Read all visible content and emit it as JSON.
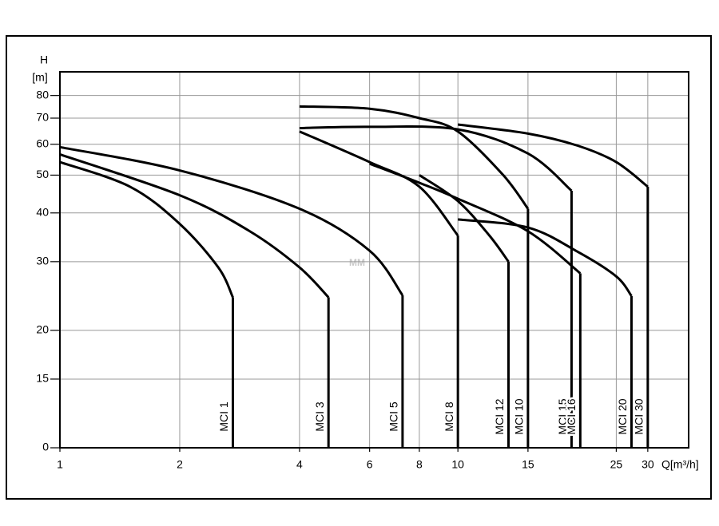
{
  "chart_data": {
    "type": "line",
    "x_label": "Q[m³/h]",
    "y_label": "H",
    "y_unit": "[m]",
    "y_bottom_label": "0",
    "watermark": "MM",
    "xscale": "log",
    "yscale": "log",
    "xlim": [
      1,
      38
    ],
    "ylim": [
      10,
      92
    ],
    "xticks": [
      1,
      2,
      4,
      6,
      8,
      10,
      15,
      25,
      30
    ],
    "yticks": [
      15,
      20,
      30,
      40,
      50,
      60,
      70,
      80
    ],
    "grid": true,
    "series": [
      {
        "name": "MCI 1",
        "color": "#000000",
        "x": [
          1,
          1.5,
          2,
          2.5,
          2.72
        ],
        "values": [
          54,
          46.7,
          37.5,
          29,
          24.3
        ]
      },
      {
        "name": "MCI 3",
        "color": "#000000",
        "x": [
          1,
          2,
          3,
          4,
          4.73
        ],
        "values": [
          56.5,
          44.4,
          35.9,
          29,
          24.3
        ]
      },
      {
        "name": "MCI 5",
        "color": "#000000",
        "x": [
          1,
          2,
          4,
          6,
          7.26
        ],
        "values": [
          59,
          51.4,
          41,
          32,
          24.6
        ]
      },
      {
        "name": "MCI 8",
        "color": "#000000",
        "x": [
          4,
          6,
          8,
          10
        ],
        "values": [
          64.7,
          54,
          46.7,
          35
        ]
      },
      {
        "name": "MCI 12",
        "color": "#000000",
        "x": [
          8,
          10,
          12,
          13.4
        ],
        "values": [
          50,
          42.9,
          35,
          30
        ]
      },
      {
        "name": "MCI 10",
        "color": "#000000",
        "x": [
          4,
          6,
          8,
          10,
          13,
          15
        ],
        "values": [
          75,
          74,
          70,
          64.7,
          50,
          41
        ]
      },
      {
        "name": "MCI 15",
        "color": "#000000",
        "x": [
          4,
          6,
          10,
          15,
          19.3
        ],
        "values": [
          66,
          66.5,
          65.5,
          56.8,
          45.6
        ]
      },
      {
        "name": "MCI 16",
        "color": "#000000",
        "x": [
          6,
          8,
          10,
          15,
          20.3
        ],
        "values": [
          53.5,
          47.8,
          43.5,
          35.9,
          28
        ]
      },
      {
        "name": "MCI 20",
        "color": "#000000",
        "x": [
          10,
          15,
          20,
          25,
          27.3
        ],
        "values": [
          38.5,
          36.7,
          31.8,
          27.5,
          24.5
        ]
      },
      {
        "name": "MCI 30",
        "color": "#000000",
        "x": [
          10,
          15,
          20,
          25,
          30
        ],
        "values": [
          67.4,
          63.9,
          59.5,
          54,
          46.7
        ]
      }
    ]
  }
}
